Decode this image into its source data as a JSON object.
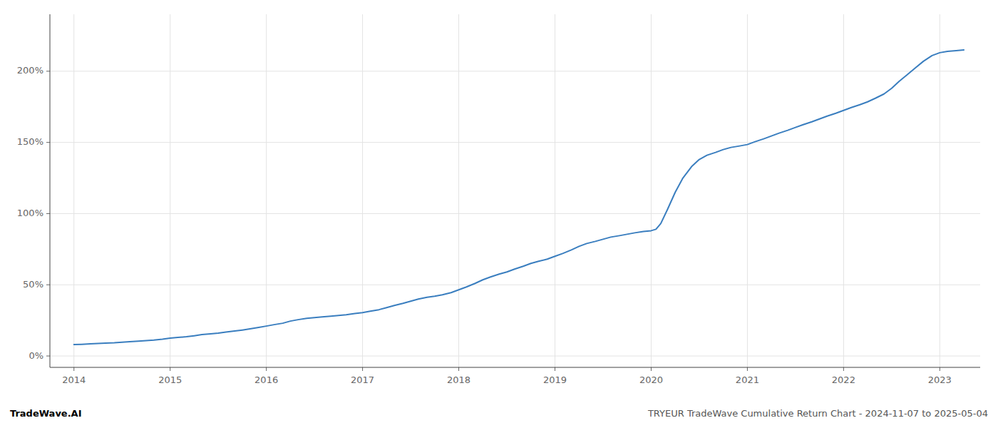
{
  "chart_data": {
    "type": "line",
    "title": "TRYEUR TradeWave Cumulative Return Chart - 2024-11-07 to 2025-05-04",
    "annotations": [
      "TradeWave.AI"
    ],
    "color": "#3a7ebf",
    "grid": true,
    "x": [
      2014.0,
      2014.08,
      2014.17,
      2014.25,
      2014.33,
      2014.42,
      2014.5,
      2014.58,
      2014.67,
      2014.75,
      2014.83,
      2014.92,
      2015.0,
      2015.08,
      2015.17,
      2015.25,
      2015.33,
      2015.42,
      2015.5,
      2015.58,
      2015.67,
      2015.75,
      2015.83,
      2015.92,
      2016.0,
      2016.08,
      2016.17,
      2016.25,
      2016.33,
      2016.42,
      2016.5,
      2016.58,
      2016.67,
      2016.75,
      2016.83,
      2016.92,
      2017.0,
      2017.08,
      2017.17,
      2017.25,
      2017.33,
      2017.42,
      2017.5,
      2017.58,
      2017.67,
      2017.75,
      2017.83,
      2017.92,
      2018.0,
      2018.08,
      2018.17,
      2018.25,
      2018.33,
      2018.42,
      2018.5,
      2018.58,
      2018.67,
      2018.75,
      2018.83,
      2018.92,
      2019.0,
      2019.08,
      2019.17,
      2019.25,
      2019.33,
      2019.42,
      2019.5,
      2019.58,
      2019.67,
      2019.75,
      2019.83,
      2019.92,
      2020.0,
      2020.05,
      2020.1,
      2020.17,
      2020.25,
      2020.33,
      2020.42,
      2020.5,
      2020.58,
      2020.67,
      2020.75,
      2020.83,
      2020.92,
      2021.0,
      2021.08,
      2021.17,
      2021.25,
      2021.33,
      2021.42,
      2021.5,
      2021.58,
      2021.67,
      2021.75,
      2021.83,
      2021.92,
      2022.0,
      2022.08,
      2022.17,
      2022.25,
      2022.33,
      2022.42,
      2022.5,
      2022.58,
      2022.67,
      2022.75,
      2022.83,
      2022.92,
      2023.0,
      2023.08,
      2023.17,
      2023.25
    ],
    "values": [
      8.0,
      8.2,
      8.5,
      8.8,
      9.0,
      9.3,
      9.7,
      10.0,
      10.4,
      10.8,
      11.2,
      11.8,
      12.5,
      13.0,
      13.5,
      14.2,
      15.0,
      15.5,
      16.0,
      16.8,
      17.5,
      18.2,
      19.0,
      20.0,
      21.0,
      22.0,
      23.0,
      24.5,
      25.5,
      26.5,
      27.0,
      27.5,
      28.0,
      28.5,
      29.0,
      29.8,
      30.5,
      31.5,
      32.5,
      34.0,
      35.5,
      37.0,
      38.5,
      40.0,
      41.2,
      42.0,
      43.0,
      44.5,
      46.5,
      48.5,
      51.0,
      53.5,
      55.5,
      57.5,
      59.0,
      61.0,
      63.0,
      65.0,
      66.5,
      68.0,
      70.0,
      72.0,
      74.5,
      77.0,
      79.0,
      80.5,
      82.0,
      83.5,
      84.5,
      85.5,
      86.5,
      87.5,
      88.0,
      89.0,
      93.0,
      103.0,
      115.0,
      125.0,
      133.0,
      138.0,
      141.0,
      143.0,
      145.0,
      146.5,
      147.5,
      148.5,
      150.5,
      152.5,
      154.5,
      156.5,
      158.5,
      160.5,
      162.5,
      164.5,
      166.5,
      168.5,
      170.5,
      172.5,
      174.5,
      176.5,
      178.5,
      181.0,
      184.0,
      188.0,
      193.0,
      198.0,
      202.5,
      207.0,
      211.0,
      213.0,
      214.0,
      214.5,
      215.0
    ],
    "xlim": [
      2013.75,
      2023.42
    ],
    "ylim": [
      -8,
      240
    ],
    "xticks": [
      2014,
      2015,
      2016,
      2017,
      2018,
      2019,
      2020,
      2021,
      2022,
      2023
    ],
    "yticks": [
      {
        "value": 0,
        "label": "0%"
      },
      {
        "value": 50,
        "label": "50%"
      },
      {
        "value": 100,
        "label": "100%"
      },
      {
        "value": 150,
        "label": "150%"
      },
      {
        "value": 200,
        "label": "200%"
      }
    ]
  }
}
